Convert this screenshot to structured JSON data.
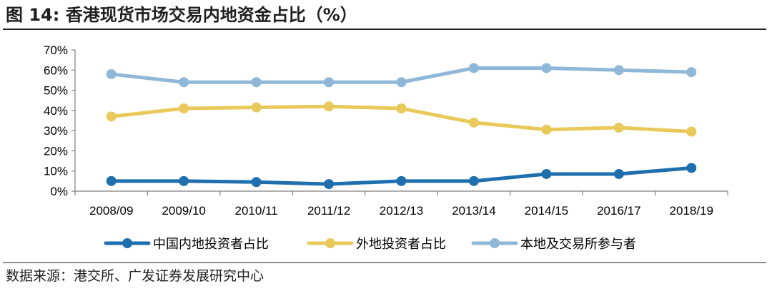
{
  "title": "图 14:  香港现货市场交易内地资金占比（%）",
  "source": "数据来源：港交所、广发证券发展研究中心",
  "colors": {
    "mainland": "#1f6fae",
    "overseas": "#e9c95a",
    "local": "#8fb8d8",
    "axis": "#7f7f7f"
  },
  "chart_data": {
    "type": "line",
    "categories": [
      "2008/09",
      "2009/10",
      "2010/11",
      "2011/12",
      "2012/13",
      "2013/14",
      "2014/15",
      "2016/17",
      "2018/19"
    ],
    "ylim": [
      0,
      70
    ],
    "yticks": [
      "0%",
      "10%",
      "20%",
      "30%",
      "40%",
      "50%",
      "60%",
      "70%"
    ],
    "grid": false,
    "legend": "bottom",
    "series": [
      {
        "name": "中国内地投资者占比",
        "color": "#1f6fae",
        "values": [
          5,
          5,
          4.5,
          3.5,
          5,
          5,
          8.5,
          8.5,
          11.5
        ]
      },
      {
        "name": "外地投资者占比",
        "color": "#e9c95a",
        "values": [
          37,
          41,
          41.5,
          42,
          41,
          34,
          30.5,
          31.5,
          29.5
        ]
      },
      {
        "name": "本地及交易所参与者",
        "color": "#8fb8d8",
        "values": [
          58,
          54,
          54,
          54,
          54,
          61,
          61,
          60,
          59
        ]
      }
    ]
  }
}
